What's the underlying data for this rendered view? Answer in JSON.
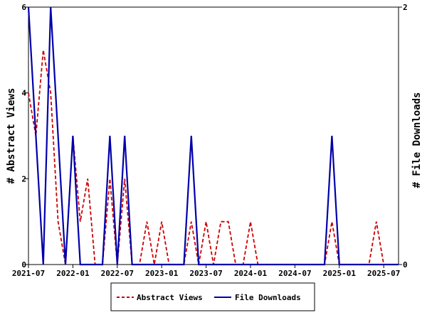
{
  "chart_data": {
    "type": "line",
    "x_ticks": [
      "2021-07",
      "2022-01",
      "2022-07",
      "2023-01",
      "2023-07",
      "2024-01",
      "2024-07",
      "2025-01",
      "2025-07"
    ],
    "y_left": {
      "label": "# Abstract Views",
      "ylim": [
        0,
        6
      ],
      "ticks": [
        "0",
        "2",
        "4",
        "6"
      ]
    },
    "y_right": {
      "label": "# File Downloads",
      "ylim": [
        0,
        2
      ],
      "ticks": [
        "0",
        "2"
      ]
    },
    "legend_position": "bottom",
    "grid": false,
    "series": [
      {
        "name": "Abstract Views",
        "axis": "left",
        "color": "#cc0000",
        "style": "dashed",
        "points": [
          [
            "2021-07",
            4
          ],
          [
            "2021-08",
            3
          ],
          [
            "2021-09",
            5
          ],
          [
            "2021-10",
            4
          ],
          [
            "2021-11",
            1
          ],
          [
            "2021-12",
            0
          ],
          [
            "2022-01",
            3
          ],
          [
            "2022-02",
            1
          ],
          [
            "2022-03",
            2
          ],
          [
            "2022-04",
            0
          ],
          [
            "2022-05",
            0
          ],
          [
            "2022-06",
            2
          ],
          [
            "2022-07",
            0
          ],
          [
            "2022-08",
            2
          ],
          [
            "2022-09",
            0
          ],
          [
            "2022-10",
            0
          ],
          [
            "2022-11",
            1
          ],
          [
            "2022-12",
            0
          ],
          [
            "2023-01",
            1
          ],
          [
            "2023-02",
            0
          ],
          [
            "2023-03",
            0
          ],
          [
            "2023-04",
            0
          ],
          [
            "2023-05",
            1
          ],
          [
            "2023-06",
            0
          ],
          [
            "2023-07",
            1
          ],
          [
            "2023-08",
            0
          ],
          [
            "2023-09",
            1
          ],
          [
            "2023-10",
            1
          ],
          [
            "2023-11",
            0
          ],
          [
            "2023-12",
            0
          ],
          [
            "2024-01",
            1
          ],
          [
            "2024-02",
            0
          ],
          [
            "2024-03",
            0
          ],
          [
            "2024-04",
            0
          ],
          [
            "2024-05",
            0
          ],
          [
            "2024-06",
            0
          ],
          [
            "2024-07",
            0
          ],
          [
            "2024-08",
            0
          ],
          [
            "2024-09",
            0
          ],
          [
            "2024-10",
            0
          ],
          [
            "2024-11",
            0
          ],
          [
            "2024-12",
            1
          ],
          [
            "2025-01",
            0
          ],
          [
            "2025-02",
            0
          ],
          [
            "2025-03",
            0
          ],
          [
            "2025-04",
            0
          ],
          [
            "2025-05",
            0
          ],
          [
            "2025-06",
            1
          ],
          [
            "2025-07",
            0
          ],
          [
            "2025-08",
            0
          ],
          [
            "2025-09",
            0
          ]
        ]
      },
      {
        "name": "File Downloads",
        "axis": "right",
        "color": "#0000aa",
        "style": "solid",
        "points": [
          [
            "2021-07",
            2
          ],
          [
            "2021-08",
            1
          ],
          [
            "2021-09",
            0
          ],
          [
            "2021-10",
            2
          ],
          [
            "2021-11",
            1
          ],
          [
            "2021-12",
            0
          ],
          [
            "2022-01",
            1
          ],
          [
            "2022-02",
            0
          ],
          [
            "2022-03",
            0
          ],
          [
            "2022-04",
            0
          ],
          [
            "2022-05",
            0
          ],
          [
            "2022-06",
            1
          ],
          [
            "2022-07",
            0
          ],
          [
            "2022-08",
            1
          ],
          [
            "2022-09",
            0
          ],
          [
            "2022-10",
            0
          ],
          [
            "2022-11",
            0
          ],
          [
            "2022-12",
            0
          ],
          [
            "2023-01",
            0
          ],
          [
            "2023-02",
            0
          ],
          [
            "2023-03",
            0
          ],
          [
            "2023-04",
            0
          ],
          [
            "2023-05",
            1
          ],
          [
            "2023-06",
            0
          ],
          [
            "2023-07",
            0
          ],
          [
            "2023-08",
            0
          ],
          [
            "2023-09",
            0
          ],
          [
            "2023-10",
            0
          ],
          [
            "2023-11",
            0
          ],
          [
            "2023-12",
            0
          ],
          [
            "2024-01",
            0
          ],
          [
            "2024-02",
            0
          ],
          [
            "2024-03",
            0
          ],
          [
            "2024-04",
            0
          ],
          [
            "2024-05",
            0
          ],
          [
            "2024-06",
            0
          ],
          [
            "2024-07",
            0
          ],
          [
            "2024-08",
            0
          ],
          [
            "2024-09",
            0
          ],
          [
            "2024-10",
            0
          ],
          [
            "2024-11",
            0
          ],
          [
            "2024-12",
            1
          ],
          [
            "2025-01",
            0
          ],
          [
            "2025-02",
            0
          ],
          [
            "2025-03",
            0
          ],
          [
            "2025-04",
            0
          ],
          [
            "2025-05",
            0
          ],
          [
            "2025-06",
            0
          ],
          [
            "2025-07",
            0
          ],
          [
            "2025-08",
            0
          ],
          [
            "2025-09",
            0
          ]
        ]
      }
    ]
  }
}
